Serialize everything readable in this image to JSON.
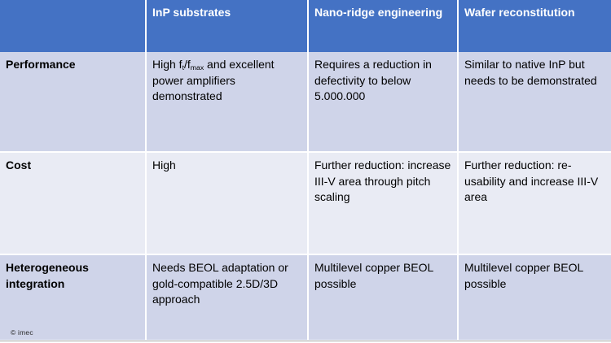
{
  "colors": {
    "header_bg": "#4472C4",
    "header_text": "#FFFFFF",
    "row_odd_bg": "#CFD4E9",
    "row_even_bg": "#E9EBF4",
    "body_text": "#000000",
    "border_color": "#FFFFFF",
    "bottom_line": "#A3A3A3",
    "page_bg": "#FFFFFF"
  },
  "slide": {
    "copyright": "© imec"
  },
  "table": {
    "column_headers": [
      "InP substrates",
      "Nano-ridge engineering",
      "Wafer reconstitution"
    ],
    "rows": [
      {
        "label": "Performance",
        "cells": [
          {
            "segments": [
              {
                "text": "High f"
              },
              {
                "text": "t",
                "sub": true
              },
              {
                "text": "/f"
              },
              {
                "text": "max",
                "sub": true
              },
              {
                "text": " and excellent power amplifiers demonstrated"
              }
            ]
          },
          {
            "segments": [
              {
                "text": "Requires a reduction in defectivity to below 5.000.000"
              }
            ]
          },
          {
            "segments": [
              {
                "text": "Similar to native InP but needs to be demonstrated"
              }
            ]
          }
        ]
      },
      {
        "label": "Cost",
        "cells": [
          {
            "segments": [
              {
                "text": "High"
              }
            ]
          },
          {
            "segments": [
              {
                "text": "Further reduction: increase III-V area through pitch scaling"
              }
            ]
          },
          {
            "segments": [
              {
                "text": "Further reduction: re-usability and increase III-V area"
              }
            ]
          }
        ]
      },
      {
        "label": "Heterogeneous integration",
        "cells": [
          {
            "segments": [
              {
                "text": "Needs BEOL adaptation or gold-compatible 2.5D/3D approach"
              }
            ]
          },
          {
            "segments": [
              {
                "text": "Multilevel copper BEOL possible"
              }
            ]
          },
          {
            "segments": [
              {
                "text": "Multilevel copper BEOL possible"
              }
            ]
          }
        ]
      }
    ]
  }
}
